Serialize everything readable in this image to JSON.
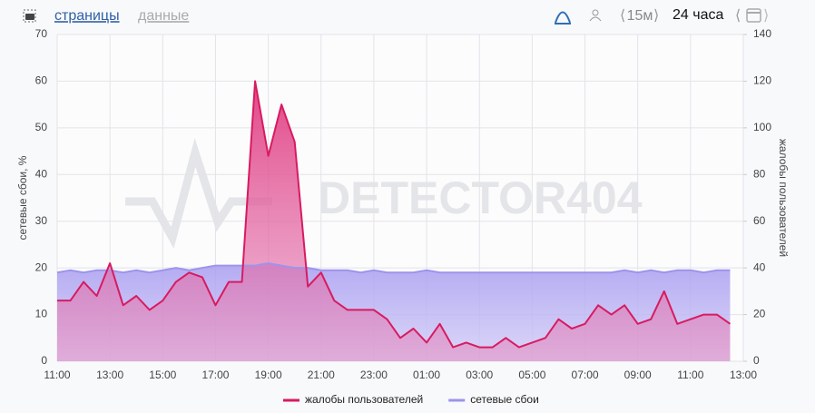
{
  "header": {
    "tabs": [
      "страницы",
      "данные"
    ],
    "interval": "15м",
    "range": "24 часа"
  },
  "chart_data": {
    "type": "area",
    "watermark": "DETECTOR404",
    "y_label": "сетевые сбои, %",
    "y2_label": "жалобы пользователей",
    "x": [
      11,
      11.5,
      12,
      12.5,
      13,
      13.5,
      14,
      14.5,
      15,
      15.5,
      16,
      16.5,
      17,
      17.5,
      18,
      18.5,
      19,
      19.5,
      20,
      20.5,
      21,
      21.5,
      22,
      22.5,
      23,
      23.5,
      24,
      24.5,
      25,
      25.5,
      26,
      26.5,
      27,
      27.5,
      28,
      28.5,
      29,
      29.5,
      30,
      30.5,
      31,
      31.5,
      32,
      32.5,
      33,
      33.5,
      34,
      34.5,
      35,
      35.5,
      36,
      36.5
    ],
    "xlim": [
      11,
      37
    ],
    "xticks": [
      {
        "value": 11,
        "label": "11:00"
      },
      {
        "value": 13,
        "label": "13:00"
      },
      {
        "value": 15,
        "label": "15:00"
      },
      {
        "value": 17,
        "label": "17:00"
      },
      {
        "value": 19,
        "label": "19:00"
      },
      {
        "value": 21,
        "label": "21:00"
      },
      {
        "value": 23,
        "label": "23:00"
      },
      {
        "value": 25,
        "label": "01:00"
      },
      {
        "value": 27,
        "label": "03:00"
      },
      {
        "value": 29,
        "label": "05:00"
      },
      {
        "value": 31,
        "label": "07:00"
      },
      {
        "value": 33,
        "label": "09:00"
      },
      {
        "value": 35,
        "label": "11:00"
      },
      {
        "value": 37,
        "label": "13:00"
      }
    ],
    "ylim": [
      0,
      70
    ],
    "yticks": [
      0,
      10,
      20,
      30,
      40,
      50,
      60,
      70
    ],
    "y2lim": [
      0,
      140
    ],
    "y2ticks": [
      0,
      20,
      40,
      60,
      80,
      100,
      120,
      140
    ],
    "grid": true,
    "series": [
      {
        "name": "жалобы пользователей",
        "color": "#d81b60",
        "axis": "y2",
        "values": [
          26,
          26,
          34,
          28,
          42,
          24,
          28,
          22,
          26,
          34,
          38,
          36,
          24,
          34,
          34,
          120,
          88,
          110,
          94,
          32,
          38,
          26,
          22,
          22,
          22,
          18,
          10,
          14,
          8,
          16,
          6,
          8,
          6,
          6,
          10,
          6,
          8,
          10,
          18,
          14,
          16,
          24,
          20,
          24,
          16,
          18,
          30,
          16,
          18,
          20,
          20,
          16
        ]
      },
      {
        "name": "сетевые сбои",
        "color": "#9d94ec",
        "axis": "y",
        "values": [
          19,
          19.5,
          19,
          19.5,
          19.5,
          19,
          19.5,
          19,
          19.5,
          20,
          19.5,
          20,
          20.5,
          20.5,
          20.5,
          20.5,
          21,
          20.5,
          20,
          20,
          19.5,
          19.5,
          19.5,
          19,
          19.5,
          19,
          19,
          19,
          19.5,
          19,
          19,
          19,
          19,
          19,
          19,
          19,
          19,
          19,
          19,
          19,
          19,
          19,
          19,
          19.5,
          19,
          19.5,
          19,
          19.5,
          19.5,
          19,
          19.5,
          19.5
        ]
      }
    ]
  }
}
